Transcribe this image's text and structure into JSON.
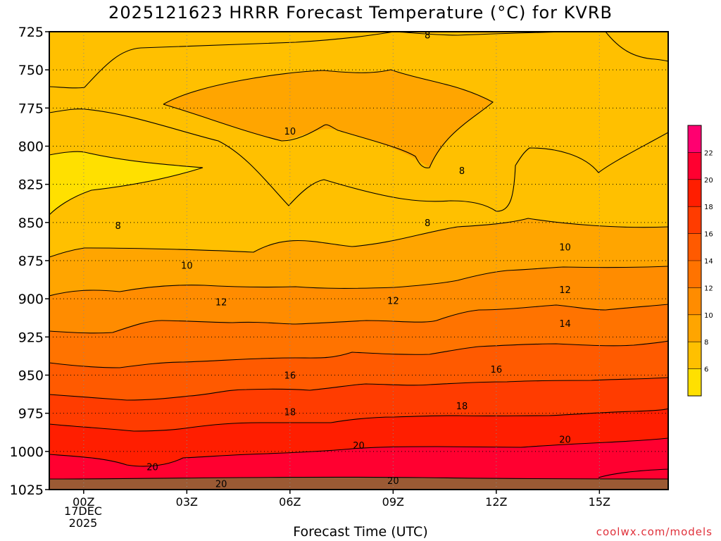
{
  "chart_data": {
    "type": "contour",
    "title": "2025121623 HRRR Forecast Temperature (°C) for KVRB",
    "xlabel": "Forecast Time (UTC)",
    "ylabel": "",
    "credit": "coolwx.com/models",
    "x_ticks": [
      "00Z",
      "03Z",
      "06Z",
      "09Z",
      "12Z",
      "15Z"
    ],
    "x_date_lines": [
      "17DEC",
      "2025"
    ],
    "y_ticks": [
      725,
      750,
      775,
      800,
      825,
      850,
      875,
      900,
      925,
      950,
      975,
      1000,
      1025
    ],
    "y_range": [
      725,
      1025
    ],
    "x_range_hours": [
      -1,
      17
    ],
    "colorbar_levels": [
      6,
      8,
      10,
      12,
      14,
      16,
      18,
      20,
      22
    ],
    "colorbar_colors": [
      "#ffe000",
      "#ffc000",
      "#ffa500",
      "#ff8c00",
      "#ff7300",
      "#ff5a00",
      "#ff3c00",
      "#ff1e00",
      "#ff0030",
      "#ff0070"
    ],
    "contour_labels": [
      {
        "v": "8",
        "hour": 10,
        "p": 727
      },
      {
        "v": "10",
        "hour": 6,
        "p": 790
      },
      {
        "v": "8",
        "hour": 11,
        "p": 816
      },
      {
        "v": "8",
        "hour": 1,
        "p": 852
      },
      {
        "v": "8",
        "hour": 10,
        "p": 850
      },
      {
        "v": "10",
        "hour": 3,
        "p": 878
      },
      {
        "v": "10",
        "hour": 14,
        "p": 866
      },
      {
        "v": "12",
        "hour": 4,
        "p": 902
      },
      {
        "v": "12",
        "hour": 9,
        "p": 901
      },
      {
        "v": "12",
        "hour": 14,
        "p": 894
      },
      {
        "v": "14",
        "hour": 14,
        "p": 916
      },
      {
        "v": "16",
        "hour": 6,
        "p": 950
      },
      {
        "v": "16",
        "hour": 12,
        "p": 946
      },
      {
        "v": "18",
        "hour": 6,
        "p": 974
      },
      {
        "v": "18",
        "hour": 11,
        "p": 970
      },
      {
        "v": "20",
        "hour": 8,
        "p": 996
      },
      {
        "v": "20",
        "hour": 14,
        "p": 992
      },
      {
        "v": "20",
        "hour": 2,
        "p": 1010
      },
      {
        "v": "20",
        "hour": 4,
        "p": 1021
      },
      {
        "v": "20",
        "hour": 9,
        "p": 1019
      }
    ]
  }
}
